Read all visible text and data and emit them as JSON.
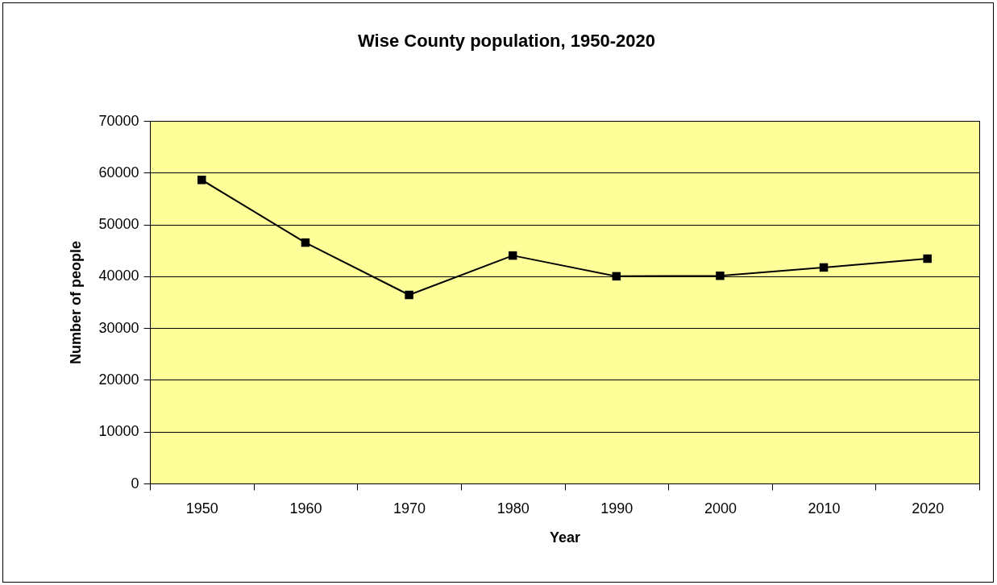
{
  "chart_data": {
    "type": "line",
    "title": "Wise County population, 1950-2020",
    "xlabel": "Year",
    "ylabel": "Number of people",
    "categories": [
      "1950",
      "1960",
      "1970",
      "1980",
      "1990",
      "2000",
      "2010",
      "2020"
    ],
    "series": [
      {
        "color": "#000000",
        "values": [
          58600,
          46500,
          36400,
          44000,
          40000,
          40100,
          41700,
          43400
        ]
      }
    ],
    "ylim": [
      0,
      70000
    ],
    "yticks": [
      0,
      10000,
      20000,
      30000,
      40000,
      50000,
      60000,
      70000
    ],
    "grid": "y",
    "marker": "square",
    "line_style": "solid"
  }
}
